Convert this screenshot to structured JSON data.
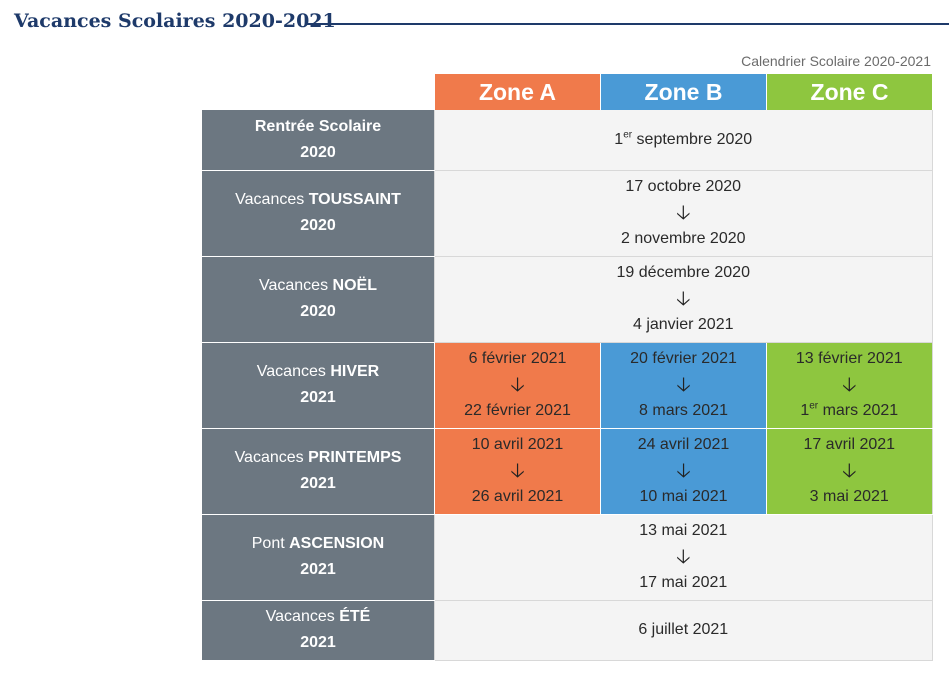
{
  "page": {
    "title": "Vacances Scolaires 2020-2021",
    "subtitle": "Calendrier Scolaire 2020-2021"
  },
  "zones": [
    "Zone A",
    "Zone B",
    "Zone C"
  ],
  "colors": {
    "zone_a": "#f07a4b",
    "zone_b": "#4a9ad6",
    "zone_c": "#8ec63f",
    "label_bg": "#6c7781",
    "title": "#1e3a6a"
  },
  "icons": {
    "arrow": "arrow-down-icon"
  },
  "arrow_glyph": "🡣",
  "rows": {
    "rentree": {
      "label_prefix": "Rentrée Scolaire",
      "label_year": "2020",
      "date_day": "1",
      "date_sup": "er",
      "date_rest": " septembre 2020"
    },
    "toussaint": {
      "label_prefix": "Vacances ",
      "label_bold": "TOUSSAINT",
      "label_year": "2020",
      "start": "17 octobre 2020",
      "end": "2 novembre 2020"
    },
    "noel": {
      "label_prefix": "Vacances ",
      "label_bold": "NOËL",
      "label_year": "2020",
      "start": "19 décembre 2020",
      "end": "4 janvier 2021"
    },
    "hiver": {
      "label_prefix": "Vacances ",
      "label_bold": "HIVER",
      "label_year": "2021",
      "zone_a": {
        "start": "6 février 2021",
        "end": "22 février 2021"
      },
      "zone_b": {
        "start": "20 février 2021",
        "end": "8 mars 2021"
      },
      "zone_c": {
        "start": "13 février 2021",
        "end_day": "1",
        "end_sup": "er",
        "end_rest": " mars 2021"
      }
    },
    "printemps": {
      "label_prefix": "Vacances ",
      "label_bold": "PRINTEMPS",
      "label_year": "2021",
      "zone_a": {
        "start": "10 avril 2021",
        "end": "26 avril 2021"
      },
      "zone_b": {
        "start": "24 avril 2021",
        "end": "10 mai 2021"
      },
      "zone_c": {
        "start": "17 avril 2021",
        "end": "3 mai 2021"
      }
    },
    "ascension": {
      "label_prefix": "Pont ",
      "label_bold": "ASCENSION",
      "label_year": "2021",
      "start": "13 mai 2021",
      "end": "17 mai 2021"
    },
    "ete": {
      "label_prefix": "Vacances ",
      "label_bold": "ÉTÉ",
      "label_year": "2021",
      "date": "6 juillet 2021"
    }
  }
}
